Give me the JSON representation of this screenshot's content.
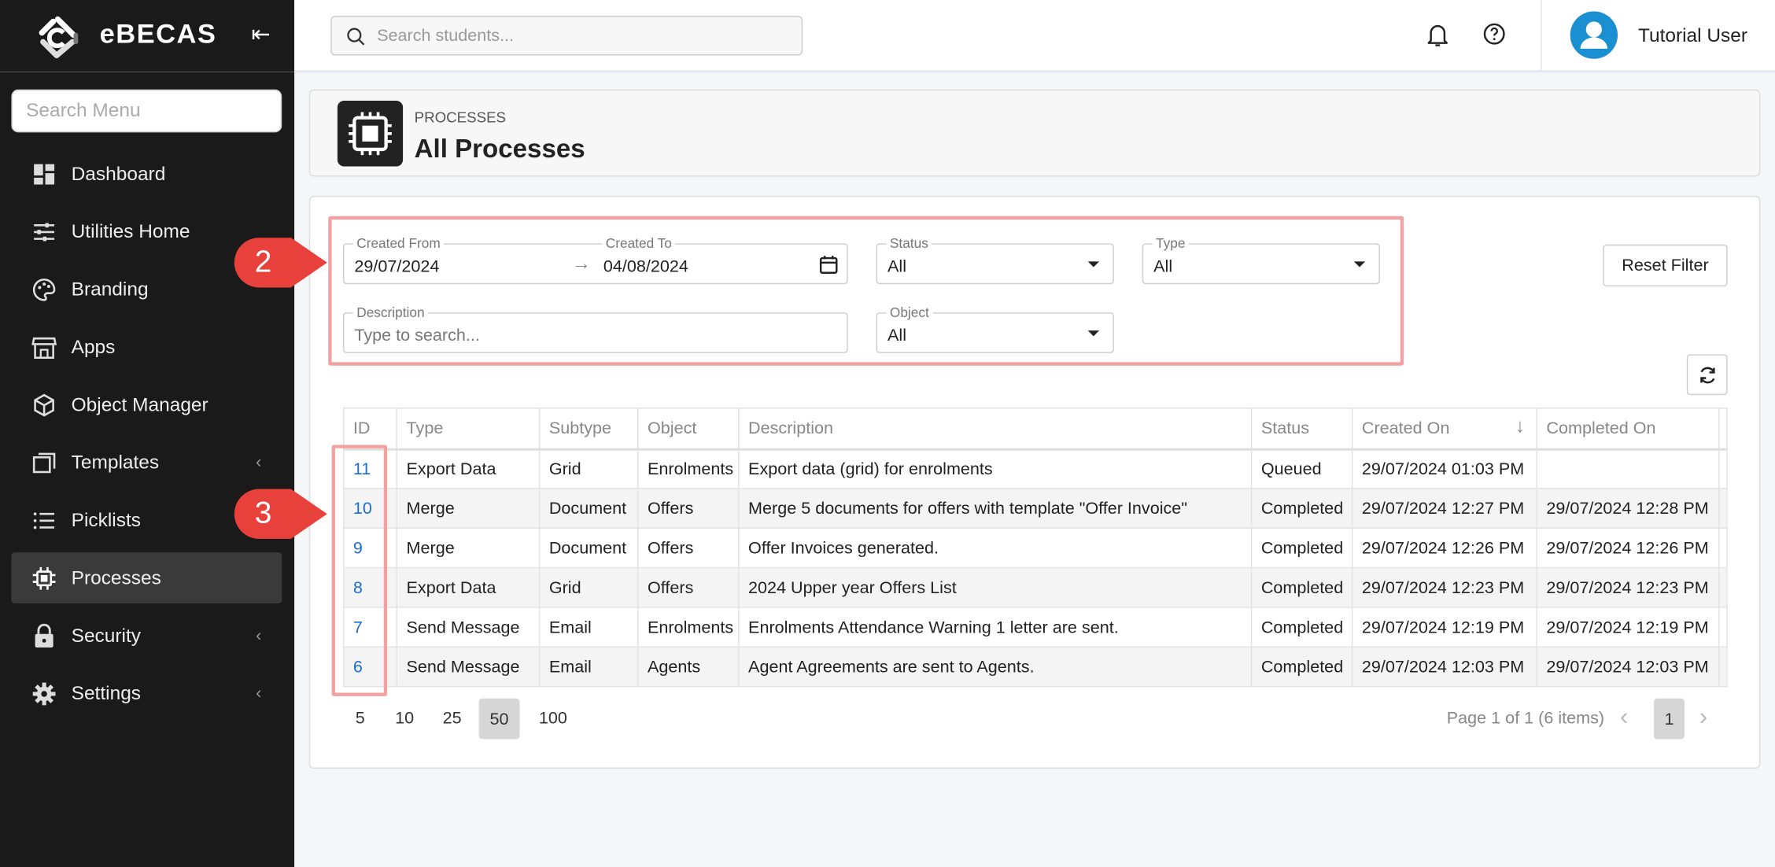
{
  "app": {
    "name": "eBECAS"
  },
  "sidebar": {
    "search_placeholder": "Search Menu",
    "items": [
      {
        "label": "Dashboard",
        "icon": "dashboard-icon"
      },
      {
        "label": "Utilities Home",
        "icon": "sliders-icon"
      },
      {
        "label": "Branding",
        "icon": "palette-icon"
      },
      {
        "label": "Apps",
        "icon": "store-icon"
      },
      {
        "label": "Object Manager",
        "icon": "cube-icon"
      },
      {
        "label": "Templates",
        "icon": "windows-icon",
        "has_submenu": true
      },
      {
        "label": "Picklists",
        "icon": "list-icon"
      },
      {
        "label": "Processes",
        "icon": "chip-icon",
        "active": true
      },
      {
        "label": "Security",
        "icon": "lock-icon",
        "has_submenu": true
      },
      {
        "label": "Settings",
        "icon": "gear-icon",
        "has_submenu": true
      }
    ]
  },
  "topbar": {
    "search_placeholder": "Search students...",
    "user_name": "Tutorial User",
    "avatar_color": "#1a8fd1"
  },
  "header": {
    "breadcrumb": "PROCESSES",
    "title": "All Processes"
  },
  "filters": {
    "created_from_label": "Created From",
    "created_from": "29/07/2024",
    "created_to_label": "Created To",
    "created_to": "04/08/2024",
    "status_label": "Status",
    "status": "All",
    "type_label": "Type",
    "type": "All",
    "description_label": "Description",
    "description_placeholder": "Type to search...",
    "object_label": "Object",
    "object": "All",
    "reset_label": "Reset Filter"
  },
  "annotations": {
    "callout_2": "2",
    "callout_3": "3",
    "color": "#e8413c"
  },
  "table": {
    "columns": [
      "ID",
      "Type",
      "Subtype",
      "Object",
      "Description",
      "Status",
      "Created On",
      "Completed On"
    ],
    "sort": {
      "column": "Created On",
      "direction": "descending"
    },
    "rows": [
      [
        "11",
        "Export Data",
        "Grid",
        "Enrolments",
        "Export data (grid) for enrolments",
        "Queued",
        "29/07/2024 01:03 PM",
        ""
      ],
      [
        "10",
        "Merge",
        "Document",
        "Offers",
        "Merge 5 documents for offers with template \"Offer Invoice\"",
        "Completed",
        "29/07/2024 12:27 PM",
        "29/07/2024 12:28 PM"
      ],
      [
        "9",
        "Merge",
        "Document",
        "Offers",
        "Offer Invoices generated.",
        "Completed",
        "29/07/2024 12:26 PM",
        "29/07/2024 12:26 PM"
      ],
      [
        "8",
        "Export Data",
        "Grid",
        "Offers",
        "2024 Upper year Offers List",
        "Completed",
        "29/07/2024 12:23 PM",
        "29/07/2024 12:23 PM"
      ],
      [
        "7",
        "Send Message",
        "Email",
        "Enrolments",
        "Enrolments Attendance Warning 1 letter are sent.",
        "Completed",
        "29/07/2024 12:19 PM",
        "29/07/2024 12:19 PM"
      ],
      [
        "6",
        "Send Message",
        "Email",
        "Agents",
        "Agent Agreements are sent to Agents.",
        "Completed",
        "29/07/2024 12:03 PM",
        "29/07/2024 12:03 PM"
      ]
    ]
  },
  "pagination": {
    "page_sizes": [
      "5",
      "10",
      "25",
      "50",
      "100"
    ],
    "selected_page_size": "50",
    "info": "Page 1 of 1 (6 items)",
    "current_page": "1"
  }
}
